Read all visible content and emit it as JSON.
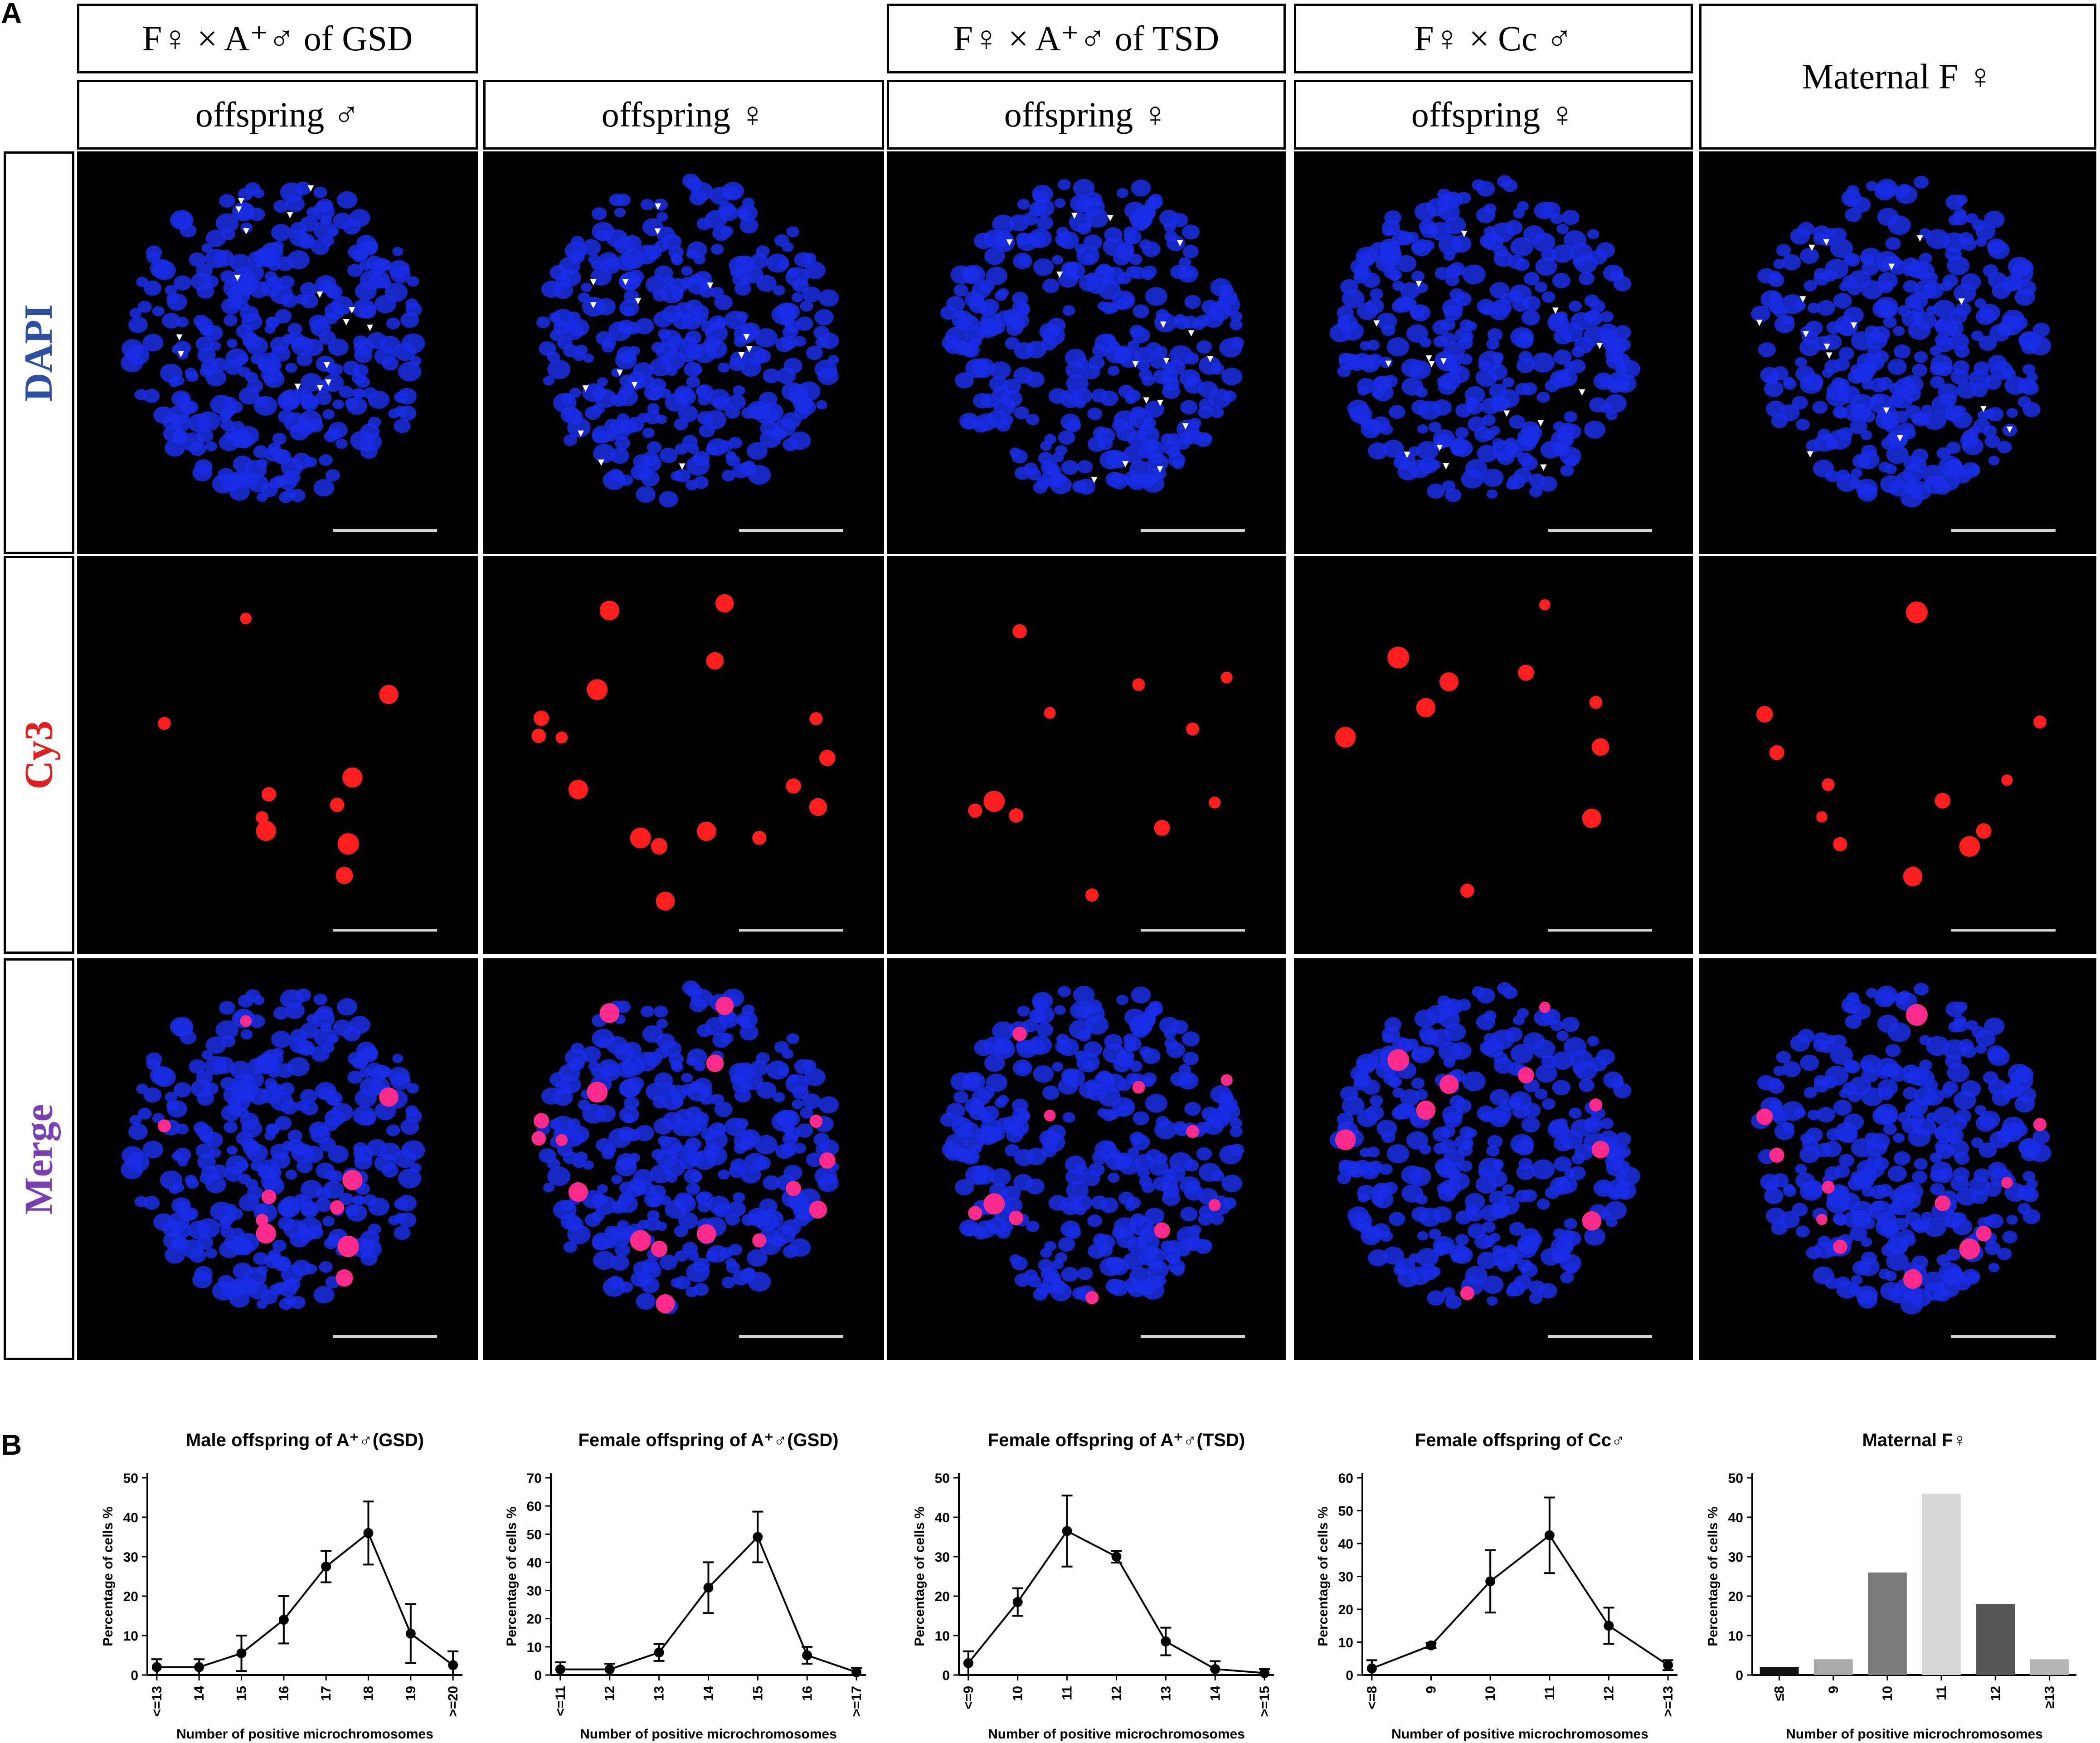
{
  "panelA": {
    "label": "A",
    "groups": [
      {
        "title": "F♀ × A⁺♂ of GSD"
      },
      {
        "title": "F♀ × A⁺♂ of TSD"
      },
      {
        "title": "F♀ × Cc ♂"
      },
      {
        "title": "Maternal F ♀"
      }
    ],
    "columns": [
      {
        "label": "offspring ♂"
      },
      {
        "label": "offspring ♀"
      },
      {
        "label": "offspring ♀"
      },
      {
        "label": "offspring ♀"
      }
    ],
    "rows": [
      {
        "label": "DAPI",
        "color": "#2f4fa0"
      },
      {
        "label": "Cy3",
        "color": "#e02020"
      },
      {
        "label": "Merge",
        "color": "#7a3fb0"
      }
    ],
    "colors": {
      "dapi": "#1a2ee6",
      "cy3": "#ff1e1e",
      "merge_spot": "#ff2a8a",
      "background": "#000000",
      "scalebar": "#cfcfcf"
    }
  },
  "panelB": {
    "label": "B"
  },
  "chart_data": [
    {
      "type": "line",
      "title": "Male offspring of A⁺♂(GSD)",
      "xlabel": "Number of positive microchromosomes",
      "ylabel": "Percentage of cells %",
      "categories": [
        "<=13",
        "14",
        "15",
        "16",
        "17",
        "18",
        "19",
        ">=20"
      ],
      "values": [
        2,
        2,
        5.5,
        14,
        27.5,
        36,
        10.5,
        2.5
      ],
      "error": [
        2,
        2,
        4.5,
        6,
        4,
        8,
        7.5,
        3.5
      ],
      "ylim": [
        0,
        50
      ],
      "yticks": [
        0,
        10,
        20,
        30,
        40,
        50
      ]
    },
    {
      "type": "line",
      "title": "Female offspring of A⁺♂(GSD)",
      "xlabel": "Number of positive microchromosomes",
      "ylabel": "Percentage of cells %",
      "categories": [
        "<=11",
        "12",
        "13",
        "14",
        "15",
        "16",
        ">=17"
      ],
      "values": [
        2,
        2,
        8,
        31,
        49,
        7,
        1
      ],
      "error": [
        2.5,
        2,
        3,
        9,
        9,
        3,
        1.5
      ],
      "ylim": [
        0,
        70
      ],
      "yticks": [
        0,
        10,
        20,
        30,
        40,
        50,
        60,
        70
      ]
    },
    {
      "type": "line",
      "title": "Female offspring of A⁺♂(TSD)",
      "xlabel": "Number of positive microchromosomes",
      "ylabel": "Percentage of cells %",
      "categories": [
        "<=9",
        "10",
        "11",
        "12",
        "13",
        "14",
        ">=15"
      ],
      "values": [
        3,
        18.5,
        36.5,
        30,
        8.5,
        1.5,
        0.5
      ],
      "error": [
        3,
        3.5,
        9,
        1.5,
        3.5,
        2,
        1
      ],
      "ylim": [
        0,
        50
      ],
      "yticks": [
        0,
        10,
        20,
        30,
        40,
        50
      ]
    },
    {
      "type": "line",
      "title": "Female offspring of Cc♂",
      "xlabel": "Number of positive microchromosomes",
      "ylabel": "Percentage of cells %",
      "categories": [
        "<=8",
        "9",
        "10",
        "11",
        "12",
        ">=13"
      ],
      "values": [
        2,
        9,
        28.5,
        42.5,
        15,
        3
      ],
      "error": [
        2.5,
        0.8,
        9.5,
        11.5,
        5.5,
        1.5
      ],
      "ylim": [
        0,
        60
      ],
      "yticks": [
        0,
        10,
        20,
        30,
        40,
        50,
        60
      ]
    },
    {
      "type": "bar",
      "title": "Maternal F♀",
      "xlabel": "Number of positive microchromosomes",
      "ylabel": "Percentage of cells %",
      "categories": [
        "≤8",
        "9",
        "10",
        "11",
        "12",
        "≥13"
      ],
      "values": [
        2,
        4,
        26,
        46,
        18,
        4
      ],
      "bar_colors": [
        "#111111",
        "#aaaaaa",
        "#7a7a7a",
        "#d8d8d8",
        "#555555",
        "#b4b4b4"
      ],
      "ylim": [
        0,
        50
      ],
      "yticks": [
        0,
        10,
        20,
        30,
        40,
        50
      ]
    }
  ]
}
